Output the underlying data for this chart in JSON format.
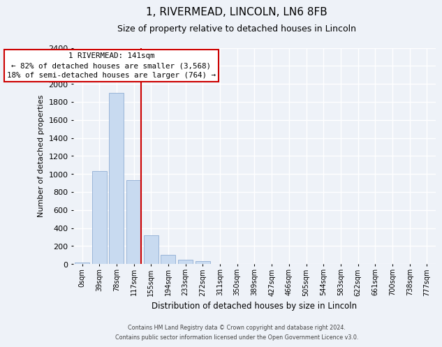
{
  "title": "1, RIVERMEAD, LINCOLN, LN6 8FB",
  "subtitle": "Size of property relative to detached houses in Lincoln",
  "xlabel": "Distribution of detached houses by size in Lincoln",
  "ylabel": "Number of detached properties",
  "bar_labels": [
    "0sqm",
    "39sqm",
    "78sqm",
    "117sqm",
    "155sqm",
    "194sqm",
    "233sqm",
    "272sqm",
    "311sqm",
    "350sqm",
    "389sqm",
    "427sqm",
    "466sqm",
    "505sqm",
    "544sqm",
    "583sqm",
    "622sqm",
    "661sqm",
    "700sqm",
    "738sqm",
    "777sqm"
  ],
  "bar_values": [
    20,
    1030,
    1900,
    930,
    320,
    105,
    50,
    30,
    0,
    0,
    0,
    0,
    0,
    0,
    0,
    0,
    0,
    0,
    0,
    0,
    0
  ],
  "bar_color": "#c8daf0",
  "bar_edge_color": "#9ab5d8",
  "vline_color": "#cc0000",
  "annotation_title": "1 RIVERMEAD: 141sqm",
  "annotation_line1": "← 82% of detached houses are smaller (3,568)",
  "annotation_line2": "18% of semi-detached houses are larger (764) →",
  "annotation_box_color": "#cc0000",
  "ylim": [
    0,
    2400
  ],
  "yticks": [
    0,
    200,
    400,
    600,
    800,
    1000,
    1200,
    1400,
    1600,
    1800,
    2000,
    2200,
    2400
  ],
  "footer_line1": "Contains HM Land Registry data © Crown copyright and database right 2024.",
  "footer_line2": "Contains public sector information licensed under the Open Government Licence v3.0.",
  "bg_color": "#eef2f8",
  "grid_color": "#ffffff"
}
